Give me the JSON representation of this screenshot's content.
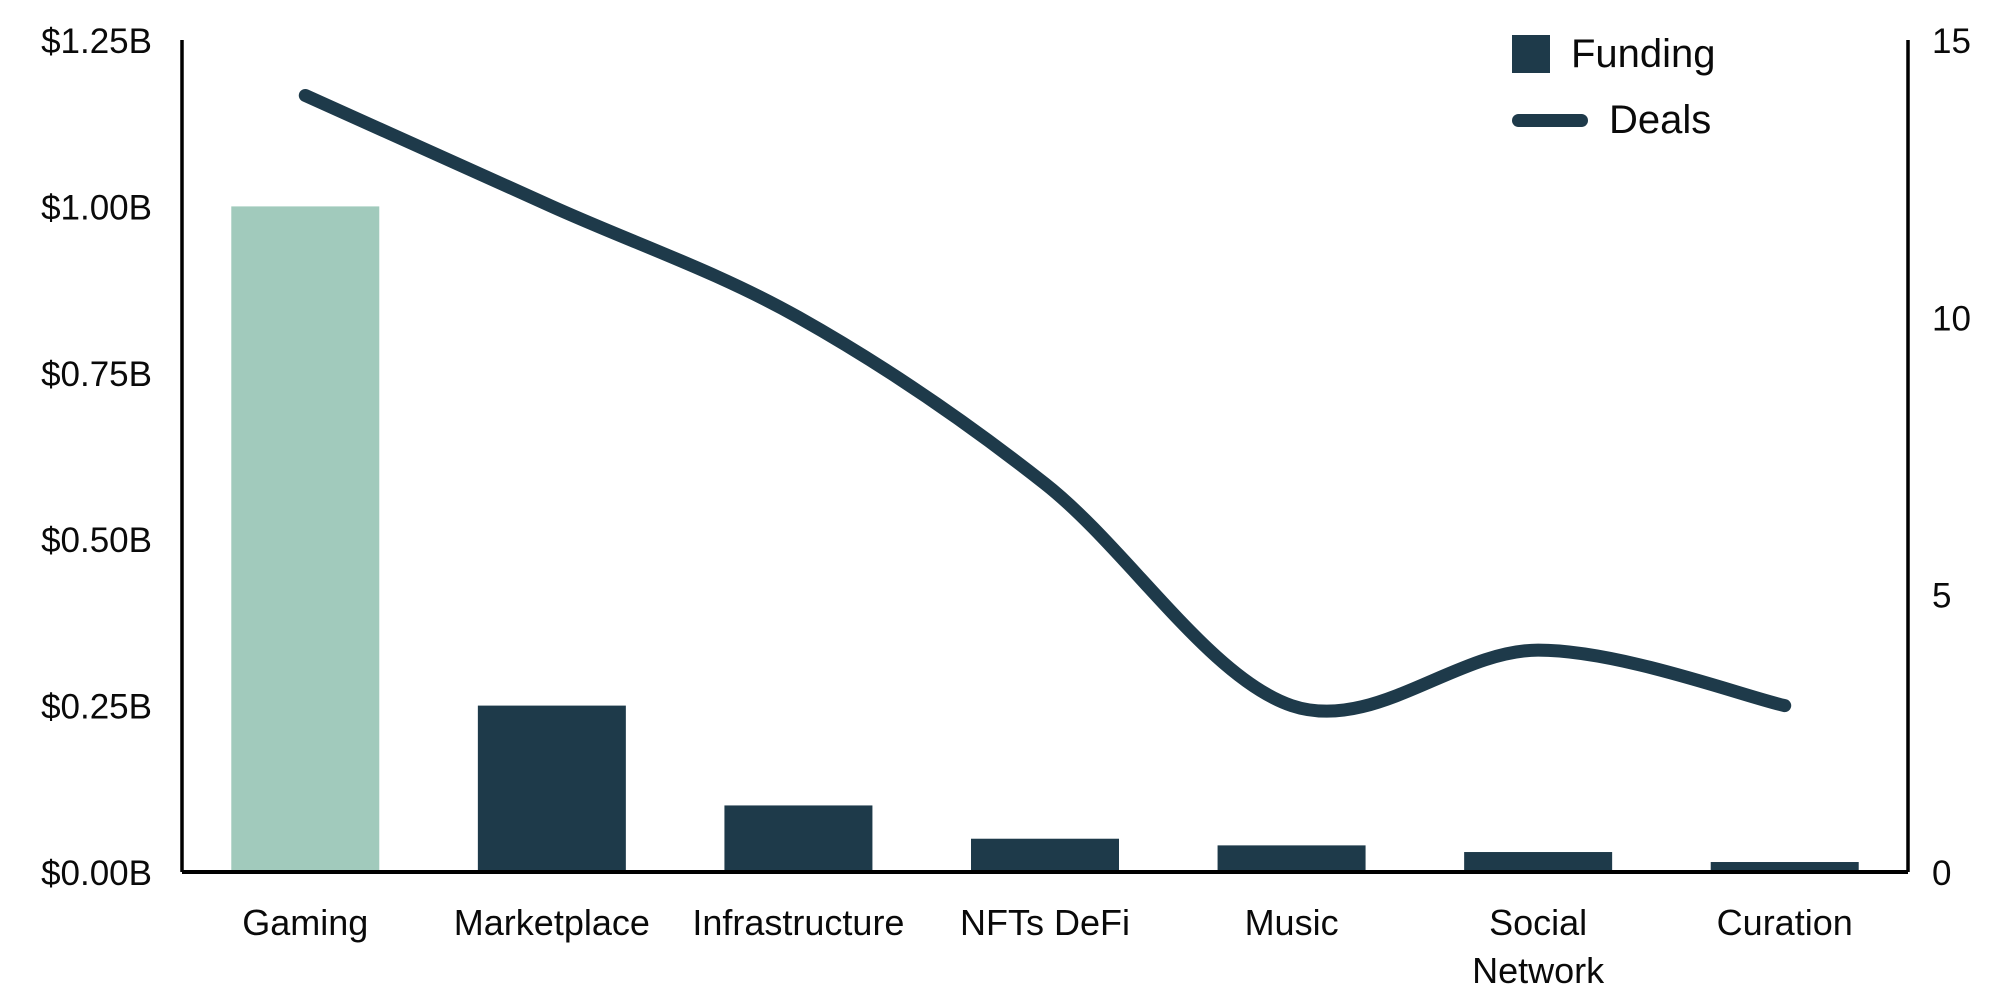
{
  "chart_data": {
    "type": "bar",
    "combo": "bar+line",
    "title": "",
    "categories": [
      "Gaming",
      "Marketplace",
      "Infrastructure",
      "NFTs DeFi",
      "Music",
      "Social Network",
      "Curation"
    ],
    "category_display_lines": [
      [
        "Gaming"
      ],
      [
        "Marketplace"
      ],
      [
        "Infrastructure"
      ],
      [
        "NFTs DeFi"
      ],
      [
        "Music"
      ],
      [
        "Social",
        "Network"
      ],
      [
        "Curation"
      ]
    ],
    "series": [
      {
        "name": "Funding",
        "type": "bar",
        "axis": "left",
        "unit": "$B",
        "values": [
          1.0,
          0.25,
          0.1,
          0.05,
          0.04,
          0.03,
          0.015
        ]
      },
      {
        "name": "Deals",
        "type": "line",
        "axis": "right",
        "values": [
          14,
          12,
          10,
          7,
          3,
          4,
          3
        ]
      }
    ],
    "highlight_index": 0,
    "left_axis": {
      "min": 0,
      "max": 1.25,
      "ticks": [
        {
          "label": "$0.00B",
          "value": 0.0
        },
        {
          "label": "$0.25B",
          "value": 0.25
        },
        {
          "label": "$0.50B",
          "value": 0.5
        },
        {
          "label": "$0.75B",
          "value": 0.75
        },
        {
          "label": "$1.00B",
          "value": 1.0
        },
        {
          "label": "$1.25B",
          "value": 1.25
        }
      ]
    },
    "right_axis": {
      "min": 0,
      "max": 15,
      "ticks": [
        {
          "label": "0",
          "value": 0
        },
        {
          "label": "5",
          "value": 5
        },
        {
          "label": "10",
          "value": 10
        },
        {
          "label": "15",
          "value": 15
        }
      ]
    },
    "legend": {
      "position": "top-right",
      "entries": [
        "Funding",
        "Deals"
      ]
    },
    "colors": {
      "bar_default": "#1e3a4a",
      "bar_highlight": "#a1cabc",
      "line": "#1e3a4a",
      "axis": "#000000",
      "text": "#0a0a0a",
      "background": "#ffffff"
    },
    "grid": false
  }
}
